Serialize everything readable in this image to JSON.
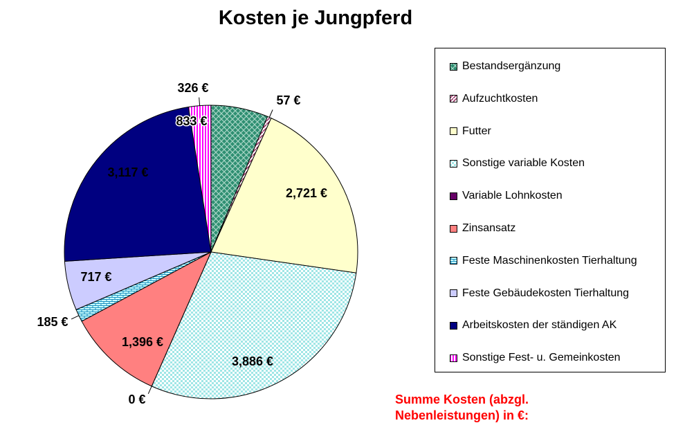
{
  "chart_data": {
    "type": "pie",
    "title": "Kosten je Jungpferd",
    "legend_position": "right",
    "slices": [
      {
        "label": "Bestandsergänzung",
        "value": 833,
        "value_label": "833 €",
        "color": "#2f8f72",
        "fill": "pattern-teal"
      },
      {
        "label": "Aufzuchtkosten",
        "value": 57,
        "value_label": "57 €",
        "color": "#993366",
        "fill": "pattern-diag"
      },
      {
        "label": "Futter",
        "value": 2721,
        "value_label": "2,721 €",
        "color": "#ffffcc",
        "fill": "#ffffcc"
      },
      {
        "label": "Sonstige variable Kosten",
        "value": 3886,
        "value_label": "3,886 €",
        "color": "#ccffff",
        "fill": "pattern-check"
      },
      {
        "label": "Variable Lohnkosten",
        "value": 0,
        "value_label": "0 €",
        "color": "#660066",
        "fill": "#660066"
      },
      {
        "label": "Zinsansatz",
        "value": 1396,
        "value_label": "1,396 €",
        "color": "#ff8080",
        "fill": "#ff8080"
      },
      {
        "label": "Feste Maschinenkosten Tierhaltung",
        "value": 185,
        "value_label": "185 €",
        "color": "#ccffff",
        "fill": "pattern-brick"
      },
      {
        "label": "Feste Gebäudekosten Tierhaltung",
        "value": 717,
        "value_label": "717 €",
        "color": "#ccccff",
        "fill": "#ccccff"
      },
      {
        "label": "Arbeitskosten der ständigen AK",
        "value": 3117,
        "value_label": "3,117 €",
        "color": "#000080",
        "fill": "#000080"
      },
      {
        "label": "Sonstige Fest- u. Gemeinkosten",
        "value": 326,
        "value_label": "326 €",
        "color": "#ff00ff",
        "fill": "pattern-vstripe"
      }
    ]
  },
  "summary": {
    "line1": "Summe Kosten (abzgl.",
    "line2": "Nebenleistungen) in €:"
  }
}
